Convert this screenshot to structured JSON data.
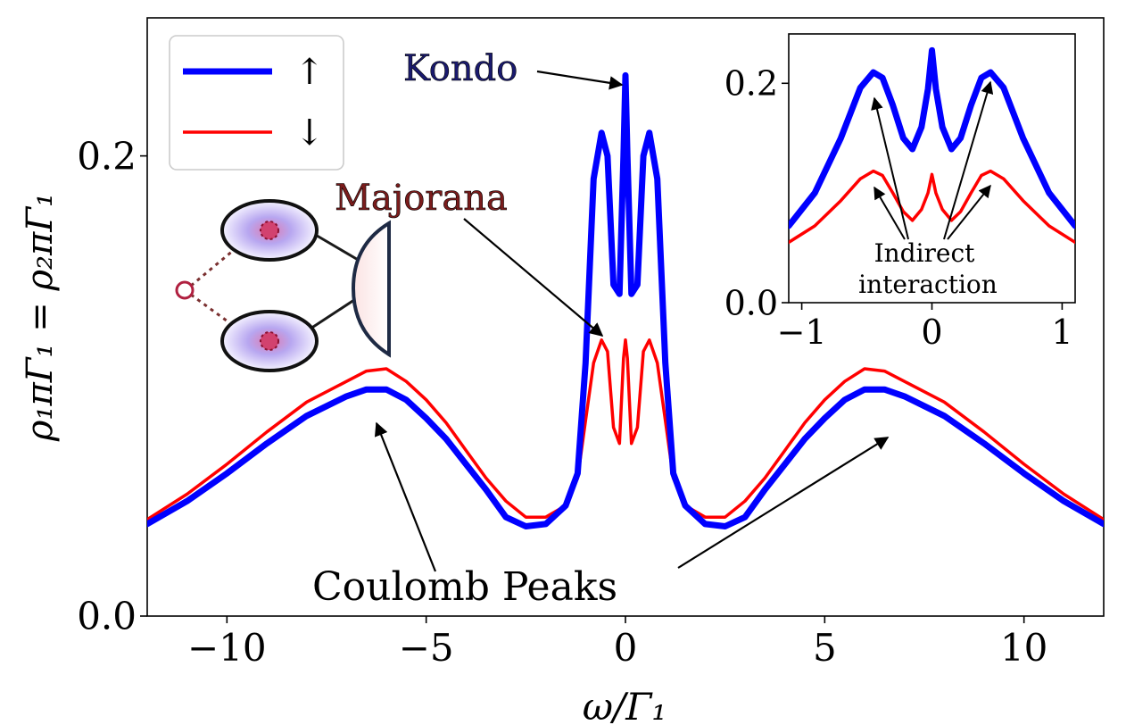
{
  "chart_data": [
    {
      "type": "line",
      "xlabel": "ω/Γ₁",
      "ylabel": "ρ₁πΓ₁ = ρ₂πΓ₁",
      "xlim": [
        -12,
        12
      ],
      "ylim": [
        0,
        0.26
      ],
      "xticks": [
        -10,
        -5,
        0,
        5,
        10
      ],
      "xtick_labels": [
        "−10",
        "−5",
        "0",
        "5",
        "10"
      ],
      "yticks": [
        0.0,
        0.2
      ],
      "ytick_labels": [
        "0.0",
        "0.2"
      ],
      "grid": false,
      "legend": {
        "placement": "top-left",
        "entries": [
          {
            "label": "↑",
            "color": "#0000ff"
          },
          {
            "label": "↓",
            "color": "#ff0000"
          }
        ]
      },
      "series": [
        {
          "name": "↑",
          "color": "#0000ff",
          "x": [
            -12,
            -11,
            -10,
            -9,
            -8,
            -7,
            -6.5,
            -6,
            -5.5,
            -5,
            -4.5,
            -4,
            -3.5,
            -3,
            -2.5,
            -2,
            -1.5,
            -1.2,
            -1,
            -0.8,
            -0.6,
            -0.45,
            -0.3,
            -0.15,
            -0.05,
            0,
            0.05,
            0.15,
            0.3,
            0.45,
            0.6,
            0.8,
            1,
            1.2,
            1.5,
            2,
            2.5,
            3,
            3.5,
            4,
            4.5,
            5,
            5.5,
            6,
            6.5,
            7,
            8,
            9,
            10,
            11,
            12
          ],
          "y": [
            0.04,
            0.05,
            0.062,
            0.075,
            0.087,
            0.0955,
            0.0985,
            0.0985,
            0.094,
            0.086,
            0.077,
            0.066,
            0.055,
            0.043,
            0.039,
            0.04,
            0.048,
            0.062,
            0.11,
            0.19,
            0.21,
            0.2,
            0.144,
            0.14,
            0.2,
            0.235,
            0.2,
            0.14,
            0.144,
            0.2,
            0.21,
            0.19,
            0.11,
            0.062,
            0.048,
            0.04,
            0.039,
            0.043,
            0.055,
            0.066,
            0.077,
            0.086,
            0.094,
            0.0985,
            0.0985,
            0.0955,
            0.087,
            0.075,
            0.062,
            0.05,
            0.04
          ]
        },
        {
          "name": "↓",
          "color": "#ff0000",
          "x": [
            -12,
            -11,
            -10,
            -9,
            -8,
            -7,
            -6.5,
            -6,
            -5.5,
            -5,
            -4.5,
            -4,
            -3.5,
            -3,
            -2.5,
            -2,
            -1.5,
            -1.2,
            -1,
            -0.8,
            -0.6,
            -0.45,
            -0.3,
            -0.15,
            -0.05,
            0,
            0.05,
            0.15,
            0.3,
            0.45,
            0.6,
            0.8,
            1,
            1.2,
            1.5,
            2,
            2.5,
            3,
            3.5,
            4,
            4.5,
            5,
            5.5,
            6,
            6.5,
            7,
            8,
            9,
            10,
            11,
            12
          ],
          "y": [
            0.042,
            0.053,
            0.066,
            0.08,
            0.093,
            0.102,
            0.1065,
            0.1075,
            0.102,
            0.094,
            0.084,
            0.072,
            0.06,
            0.05,
            0.043,
            0.043,
            0.048,
            0.06,
            0.085,
            0.11,
            0.12,
            0.115,
            0.082,
            0.075,
            0.112,
            0.12,
            0.112,
            0.075,
            0.082,
            0.115,
            0.12,
            0.11,
            0.085,
            0.06,
            0.048,
            0.043,
            0.043,
            0.05,
            0.06,
            0.072,
            0.084,
            0.094,
            0.102,
            0.1075,
            0.1065,
            0.102,
            0.093,
            0.08,
            0.066,
            0.053,
            0.042
          ]
        }
      ],
      "annotations": {
        "kondo": "Kondo",
        "majorana": "Majorana",
        "coulomb": "Coulomb Peaks"
      }
    },
    {
      "type": "line",
      "role": "inset",
      "xlim": [
        -1.1,
        1.1
      ],
      "ylim": [
        0,
        0.245
      ],
      "xticks": [
        -1,
        0,
        1
      ],
      "xtick_labels": [
        "−1",
        "0",
        "1"
      ],
      "yticks": [
        0.0,
        0.2
      ],
      "ytick_labels": [
        "0.0",
        "0.2"
      ],
      "series": [
        {
          "name": "↑",
          "color": "#0000ff",
          "x": [
            -1.1,
            -0.9,
            -0.7,
            -0.55,
            -0.45,
            -0.38,
            -0.3,
            -0.22,
            -0.15,
            -0.08,
            -0.03,
            0,
            0.03,
            0.08,
            0.15,
            0.22,
            0.3,
            0.38,
            0.45,
            0.55,
            0.7,
            0.9,
            1.1
          ],
          "y": [
            0.07,
            0.1,
            0.15,
            0.196,
            0.21,
            0.205,
            0.18,
            0.15,
            0.14,
            0.16,
            0.195,
            0.23,
            0.195,
            0.16,
            0.14,
            0.15,
            0.18,
            0.205,
            0.21,
            0.196,
            0.15,
            0.1,
            0.07
          ]
        },
        {
          "name": "↓",
          "color": "#ff0000",
          "x": [
            -1.1,
            -0.9,
            -0.7,
            -0.55,
            -0.45,
            -0.38,
            -0.3,
            -0.22,
            -0.15,
            -0.08,
            -0.03,
            0,
            0.03,
            0.08,
            0.15,
            0.22,
            0.3,
            0.38,
            0.45,
            0.55,
            0.7,
            0.9,
            1.1
          ],
          "y": [
            0.055,
            0.07,
            0.093,
            0.113,
            0.12,
            0.116,
            0.1,
            0.083,
            0.075,
            0.085,
            0.1,
            0.117,
            0.1,
            0.085,
            0.075,
            0.083,
            0.1,
            0.116,
            0.12,
            0.113,
            0.093,
            0.07,
            0.055
          ]
        }
      ],
      "annotations": {
        "indirect_line1": "Indirect",
        "indirect_line2": "interaction"
      }
    }
  ]
}
